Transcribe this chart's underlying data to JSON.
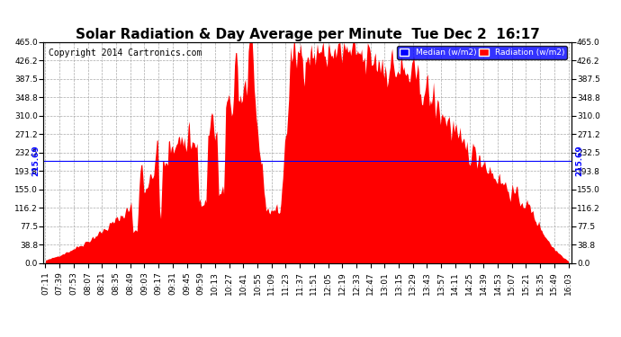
{
  "title": "Solar Radiation & Day Average per Minute  Tue Dec 2  16:17",
  "copyright": "Copyright 2014 Cartronics.com",
  "legend_median_label": "Median (w/m2)",
  "legend_radiation_label": "Radiation (w/m2)",
  "median_value": 215.69,
  "y_ticks": [
    0.0,
    38.8,
    77.5,
    116.2,
    155.0,
    193.8,
    232.5,
    271.2,
    310.0,
    348.8,
    387.5,
    426.2,
    465.0
  ],
  "ymin": 0.0,
  "ymax": 465.0,
  "bar_color": "#FF0000",
  "median_line_color": "#0000FF",
  "background_color": "#FFFFFF",
  "grid_color": "#AAAAAA",
  "title_fontsize": 11,
  "copyright_fontsize": 7,
  "tick_fontsize": 6.5,
  "x_labels": [
    "07:11",
    "07:39",
    "07:53",
    "08:07",
    "08:21",
    "08:35",
    "08:49",
    "09:03",
    "09:17",
    "09:31",
    "09:45",
    "09:59",
    "10:13",
    "10:27",
    "10:41",
    "10:55",
    "11:09",
    "11:23",
    "11:37",
    "11:51",
    "12:05",
    "12:19",
    "12:33",
    "12:47",
    "13:01",
    "13:15",
    "13:29",
    "13:43",
    "13:57",
    "14:11",
    "14:25",
    "14:39",
    "14:53",
    "15:07",
    "15:21",
    "15:35",
    "15:49",
    "16:03"
  ]
}
